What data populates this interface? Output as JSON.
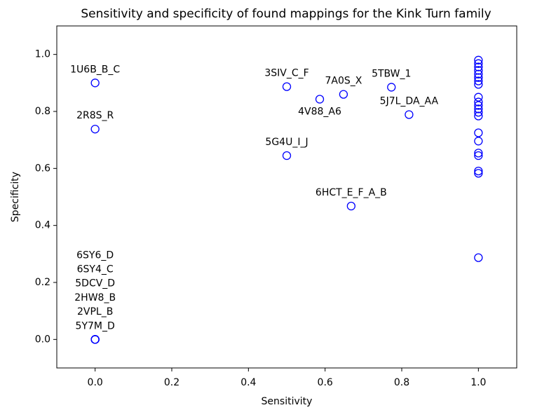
{
  "chart_data": {
    "type": "scatter",
    "title": "Sensitivity and specificity of found mappings for the Kink Turn family",
    "x_label": "Sensitivity",
    "y_label": "Specificity",
    "series": [
      {
        "color": "#0000ff",
        "x": [
          0,
          0,
          0,
          0,
          0,
          0,
          0,
          0,
          0.5,
          0.586,
          0.648,
          0.773,
          0.819,
          0.5,
          0.668,
          1,
          1,
          1,
          1,
          1,
          1,
          1,
          1,
          1,
          1,
          1,
          1,
          1,
          1,
          1,
          1,
          1,
          1,
          1,
          1,
          1
        ],
        "values": [
          0.9,
          0.738,
          0,
          0,
          0,
          0,
          0,
          0,
          0.887,
          0.843,
          0.86,
          0.885,
          0.789,
          0.645,
          0.468,
          0.98,
          0.968,
          0.956,
          0.944,
          0.931,
          0.919,
          0.907,
          0.895,
          0.85,
          0.833,
          0.821,
          0.809,
          0.797,
          0.784,
          0.725,
          0.696,
          0.654,
          0.645,
          0.591,
          0.583,
          0.287
        ],
        "point_labels": [
          "1U6B_B_C",
          "2R8S_R",
          "5Y7M_D",
          "2VPL_B",
          "2HW8_B",
          "5DCV_D",
          "6SY4_C",
          "6SY6_D",
          "3SIV_C_F",
          "4V88_A6",
          "7A0S_X",
          "5TBW_1",
          "5J7L_DA_AA",
          "5G4U_I_J",
          "6HCT_E_F_A_B",
          null,
          null,
          null,
          null,
          null,
          null,
          null,
          null,
          null,
          null,
          null,
          null,
          null,
          null,
          null,
          null,
          null,
          null,
          null,
          null,
          null
        ]
      }
    ],
    "xlim": [
      -0.1,
      1.1
    ],
    "ylim": [
      -0.1,
      1.1
    ],
    "xticks": [
      {
        "value": 0,
        "label": "0.0"
      },
      {
        "value": 0.2,
        "label": "0.2"
      },
      {
        "value": 0.4,
        "label": "0.4"
      },
      {
        "value": 0.6,
        "label": "0.6"
      },
      {
        "value": 0.8,
        "label": "0.8"
      },
      {
        "value": 1,
        "label": "1.0"
      }
    ],
    "yticks": [
      {
        "value": 0,
        "label": "0.0"
      },
      {
        "value": 0.2,
        "label": "0.2"
      },
      {
        "value": 0.4,
        "label": "0.4"
      },
      {
        "value": 0.6,
        "label": "0.6"
      },
      {
        "value": 0.8,
        "label": "0.8"
      },
      {
        "value": 1,
        "label": "1.0"
      }
    ]
  }
}
